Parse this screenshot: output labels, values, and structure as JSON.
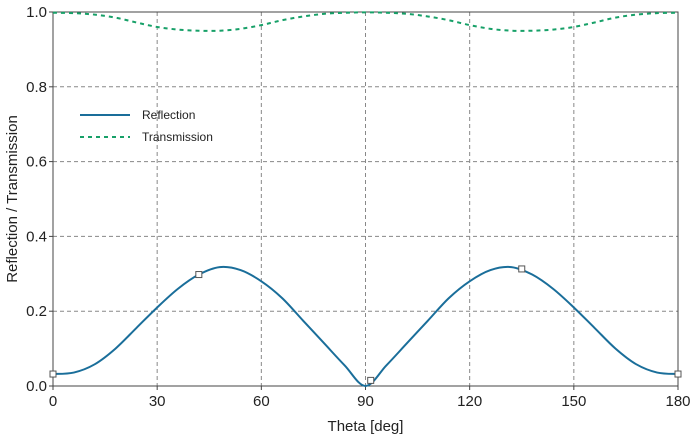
{
  "chart_data": {
    "type": "line",
    "title": "",
    "xlabel": "Theta [deg]",
    "ylabel": "Reflection / Transmission",
    "xlim": [
      0,
      180
    ],
    "ylim": [
      0,
      1.0
    ],
    "xticks": [
      0,
      30,
      60,
      90,
      120,
      150,
      180
    ],
    "yticks": [
      0.0,
      0.2,
      0.4,
      0.6,
      0.8,
      1.0
    ],
    "xtick_labels": [
      "0",
      "30",
      "60",
      "90",
      "120",
      "150",
      "180"
    ],
    "ytick_labels": [
      "0.0",
      "0.2",
      "0.4",
      "0.6",
      "0.8",
      "1.0"
    ],
    "grid": true,
    "legend_position": "top-left",
    "series": [
      {
        "name": "Reflection",
        "style": "solid",
        "color": "#1a6e9a",
        "x": [
          0,
          6,
          12,
          18,
          24,
          30,
          36,
          42,
          48,
          54,
          60,
          66,
          72,
          78,
          84,
          90,
          96,
          102,
          108,
          114,
          120,
          126,
          132,
          138,
          144,
          150,
          156,
          162,
          168,
          174,
          180
        ],
        "y": [
          0.032,
          0.036,
          0.058,
          0.1,
          0.155,
          0.21,
          0.26,
          0.298,
          0.318,
          0.31,
          0.28,
          0.235,
          0.175,
          0.115,
          0.055,
          0.0,
          0.055,
          0.115,
          0.175,
          0.235,
          0.28,
          0.31,
          0.318,
          0.298,
          0.26,
          0.21,
          0.155,
          0.1,
          0.058,
          0.036,
          0.032
        ],
        "markers": [
          {
            "x": 0,
            "y": 0.032
          },
          {
            "x": 42,
            "y": 0.298
          },
          {
            "x": 91.5,
            "y": 0.015
          },
          {
            "x": 135,
            "y": 0.313
          },
          {
            "x": 180,
            "y": 0.032
          }
        ]
      },
      {
        "name": "Transmission",
        "style": "dashed",
        "color": "#17a068",
        "x": [
          0,
          6,
          12,
          18,
          24,
          30,
          36,
          42,
          48,
          54,
          60,
          66,
          72,
          78,
          84,
          90,
          96,
          102,
          108,
          114,
          120,
          126,
          132,
          138,
          144,
          150,
          156,
          162,
          168,
          174,
          180
        ],
        "y": [
          0.998,
          0.997,
          0.993,
          0.985,
          0.972,
          0.96,
          0.953,
          0.95,
          0.95,
          0.955,
          0.965,
          0.978,
          0.988,
          0.995,
          0.998,
          0.999,
          0.998,
          0.995,
          0.988,
          0.978,
          0.965,
          0.955,
          0.95,
          0.95,
          0.953,
          0.96,
          0.972,
          0.985,
          0.993,
          0.997,
          0.998
        ]
      }
    ]
  }
}
